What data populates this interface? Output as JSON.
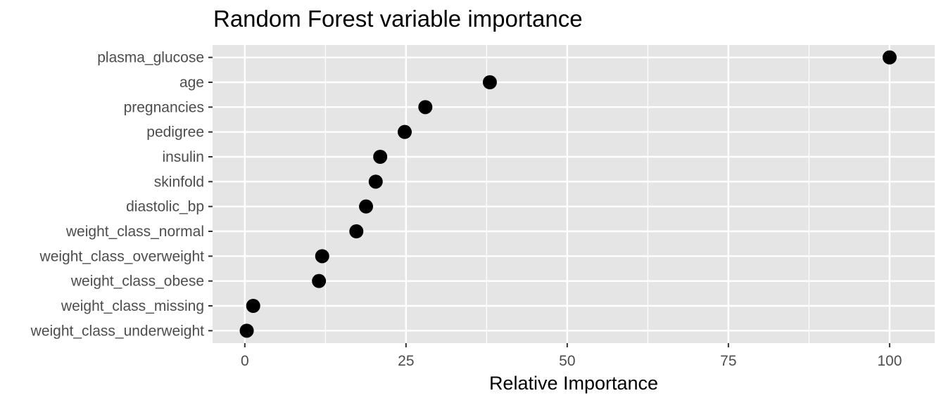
{
  "chart_data": {
    "type": "scatter",
    "title": "Random Forest variable importance",
    "xlabel": "Relative Importance",
    "ylabel": "",
    "xlim": [
      -5,
      107
    ],
    "xticks": [
      0,
      25,
      50,
      75,
      100
    ],
    "xtick_labels": [
      "0",
      "25",
      "50",
      "75",
      "100"
    ],
    "grid": true,
    "legend": "none",
    "categories": [
      "plasma_glucose",
      "age",
      "pregnancies",
      "pedigree",
      "insulin",
      "skinfold",
      "diastolic_bp",
      "weight_class_normal",
      "weight_class_overweight",
      "weight_class_obese",
      "weight_class_missing",
      "weight_class_underweight"
    ],
    "values": [
      100,
      38,
      28,
      24.8,
      21,
      20.3,
      18.8,
      17.3,
      12,
      11.5,
      1.3,
      0.3
    ],
    "colors": {
      "panel_background": "#e5e5e5",
      "grid": "#ffffff",
      "point": "#000000",
      "tick_label": "#4d4d4d",
      "tick_mark": "#333333"
    }
  }
}
